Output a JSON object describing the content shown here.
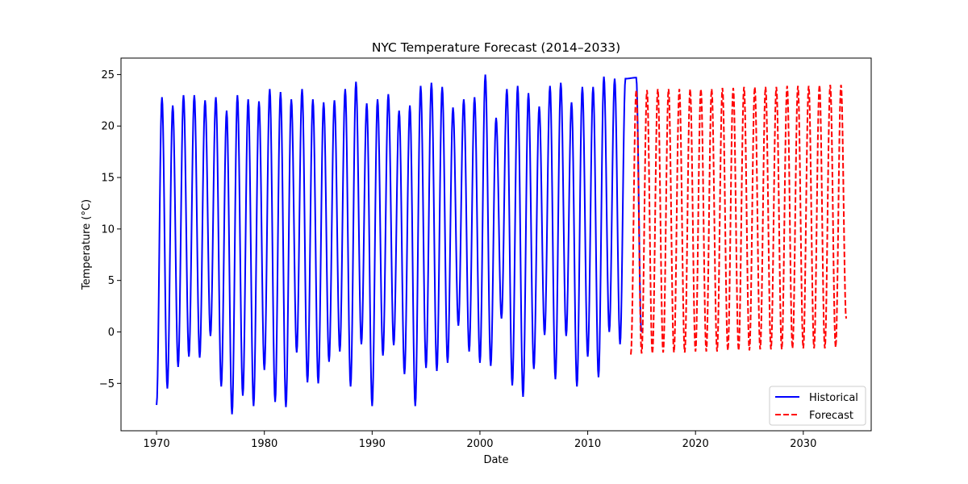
{
  "chart_data": {
    "type": "line",
    "title": "NYC Temperature Forecast (2014–2033)",
    "xlabel": "Date",
    "ylabel": "Temperature (°C)",
    "xlim": [
      1966.7,
      2036.3
    ],
    "ylim": [
      -9.6,
      26.6
    ],
    "x_ticks": [
      1970,
      1980,
      1990,
      2000,
      2010,
      2020,
      2030
    ],
    "y_ticks": [
      -5,
      0,
      5,
      10,
      15,
      20,
      25
    ],
    "grid": false,
    "legend_position": "lower-right",
    "series": [
      {
        "name": "Historical",
        "color": "#0000ff",
        "style": "solid",
        "annual_peaks": [
          22.8,
          22.0,
          23.0,
          23.0,
          22.5,
          22.8,
          21.5,
          23.0,
          22.6,
          22.4,
          23.6,
          23.3,
          22.6,
          23.6,
          22.6,
          22.3,
          22.5,
          23.6,
          24.3,
          22.2,
          22.6,
          23.1,
          21.5,
          22.0,
          23.9,
          24.2,
          23.8,
          21.8,
          22.6,
          22.8,
          25.0,
          20.8,
          23.6,
          23.9,
          23.2,
          21.9,
          23.9,
          24.2,
          22.3,
          23.8,
          23.8,
          24.8,
          24.6,
          24.6,
          24.7
        ],
        "annual_troughs": [
          -7.1,
          -5.5,
          -3.4,
          -2.4,
          -2.5,
          -0.4,
          -5.3,
          -8.0,
          -6.2,
          -7.2,
          -3.7,
          -6.8,
          -7.3,
          -2.0,
          -4.9,
          -5.0,
          -2.9,
          -1.9,
          -5.3,
          -1.2,
          -7.2,
          -2.3,
          -1.3,
          -4.1,
          -7.2,
          -3.5,
          -3.8,
          -3.0,
          0.6,
          -1.9,
          -3.0,
          -3.3,
          1.3,
          -5.2,
          -6.3,
          -3.6,
          -0.3,
          -4.6,
          -0.4,
          -5.3,
          -2.4,
          -4.4,
          0.0,
          -1.2
        ]
      },
      {
        "name": "Forecast",
        "color": "#ff0000",
        "style": "dashed",
        "annual_peaks": [
          23.5,
          23.5,
          23.6,
          23.6,
          23.6,
          23.6,
          23.6,
          23.6,
          23.7,
          23.7,
          23.8,
          23.8,
          23.8,
          23.8,
          23.9,
          23.9,
          23.9,
          24.0,
          24.0,
          24.0
        ],
        "annual_troughs": [
          -2.2,
          -2.1,
          -2.1,
          -2.0,
          -2.0,
          -2.0,
          -1.9,
          -1.9,
          -1.9,
          -1.8,
          -1.8,
          -1.8,
          -1.7,
          -1.7,
          -1.7,
          -1.6,
          -1.6,
          -1.6,
          -1.6,
          -1.5
        ],
        "start_value": -2.2,
        "end_value": 1.3
      }
    ]
  }
}
